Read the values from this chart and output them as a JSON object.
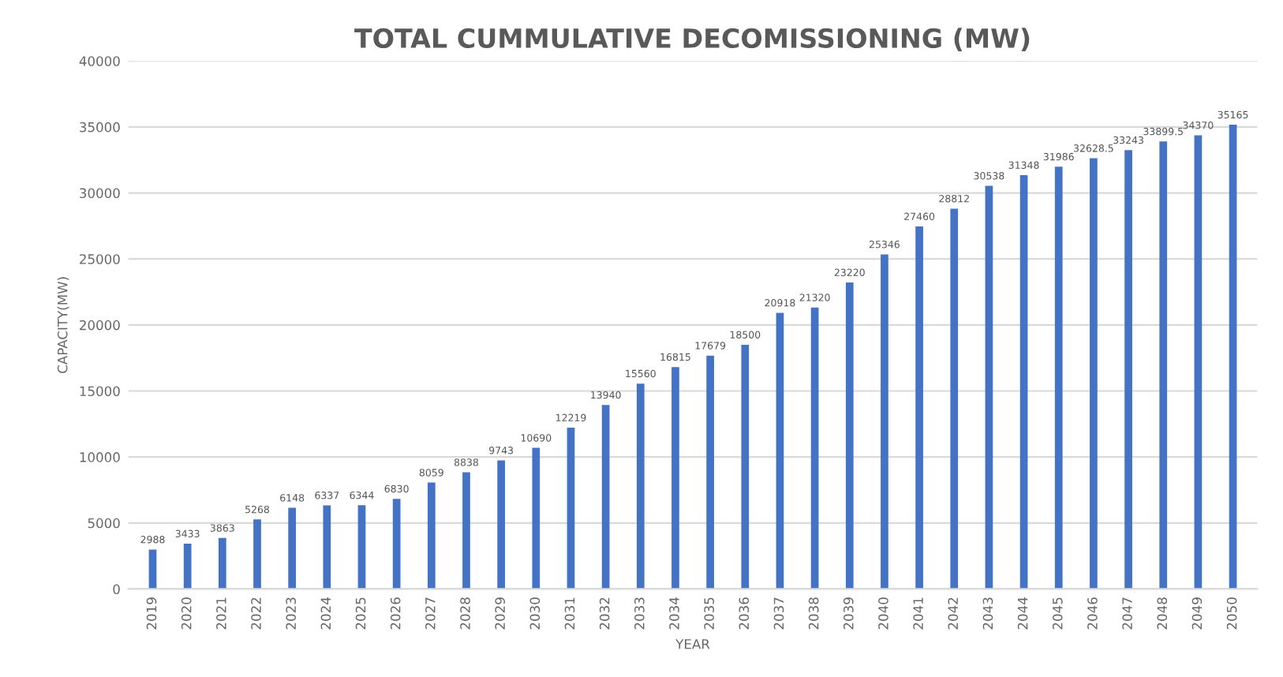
{
  "chart_data": {
    "type": "bar",
    "title": "TOTAL CUMMULATIVE DECOMISSIONING (MW)",
    "xlabel": "YEAR",
    "ylabel": "CAPACITY(MW)",
    "categories": [
      "2019",
      "2020",
      "2021",
      "2022",
      "2023",
      "2024",
      "2025",
      "2026",
      "2027",
      "2028",
      "2029",
      "2030",
      "2031",
      "2032",
      "2033",
      "2034",
      "2035",
      "2036",
      "2037",
      "2038",
      "2039",
      "2040",
      "2041",
      "2042",
      "2043",
      "2044",
      "2045",
      "2046",
      "2047",
      "2048",
      "2049",
      "2050"
    ],
    "values": [
      2988,
      3433,
      3863,
      5268,
      6148,
      6337,
      6344,
      6830,
      8059,
      8838,
      9743,
      10690,
      12219,
      13940,
      15560,
      16815,
      17679,
      18500,
      20918,
      21320,
      23220,
      25346,
      27460,
      28812,
      30538,
      31348,
      31986,
      32628.5,
      33243,
      33899.5,
      34370,
      35165
    ],
    "color": "#4472c4",
    "ylim": [
      0,
      40000
    ],
    "yticks": [
      0,
      5000,
      10000,
      15000,
      20000,
      25000,
      30000,
      35000,
      40000
    ],
    "grid": "y",
    "data_labels": true
  }
}
